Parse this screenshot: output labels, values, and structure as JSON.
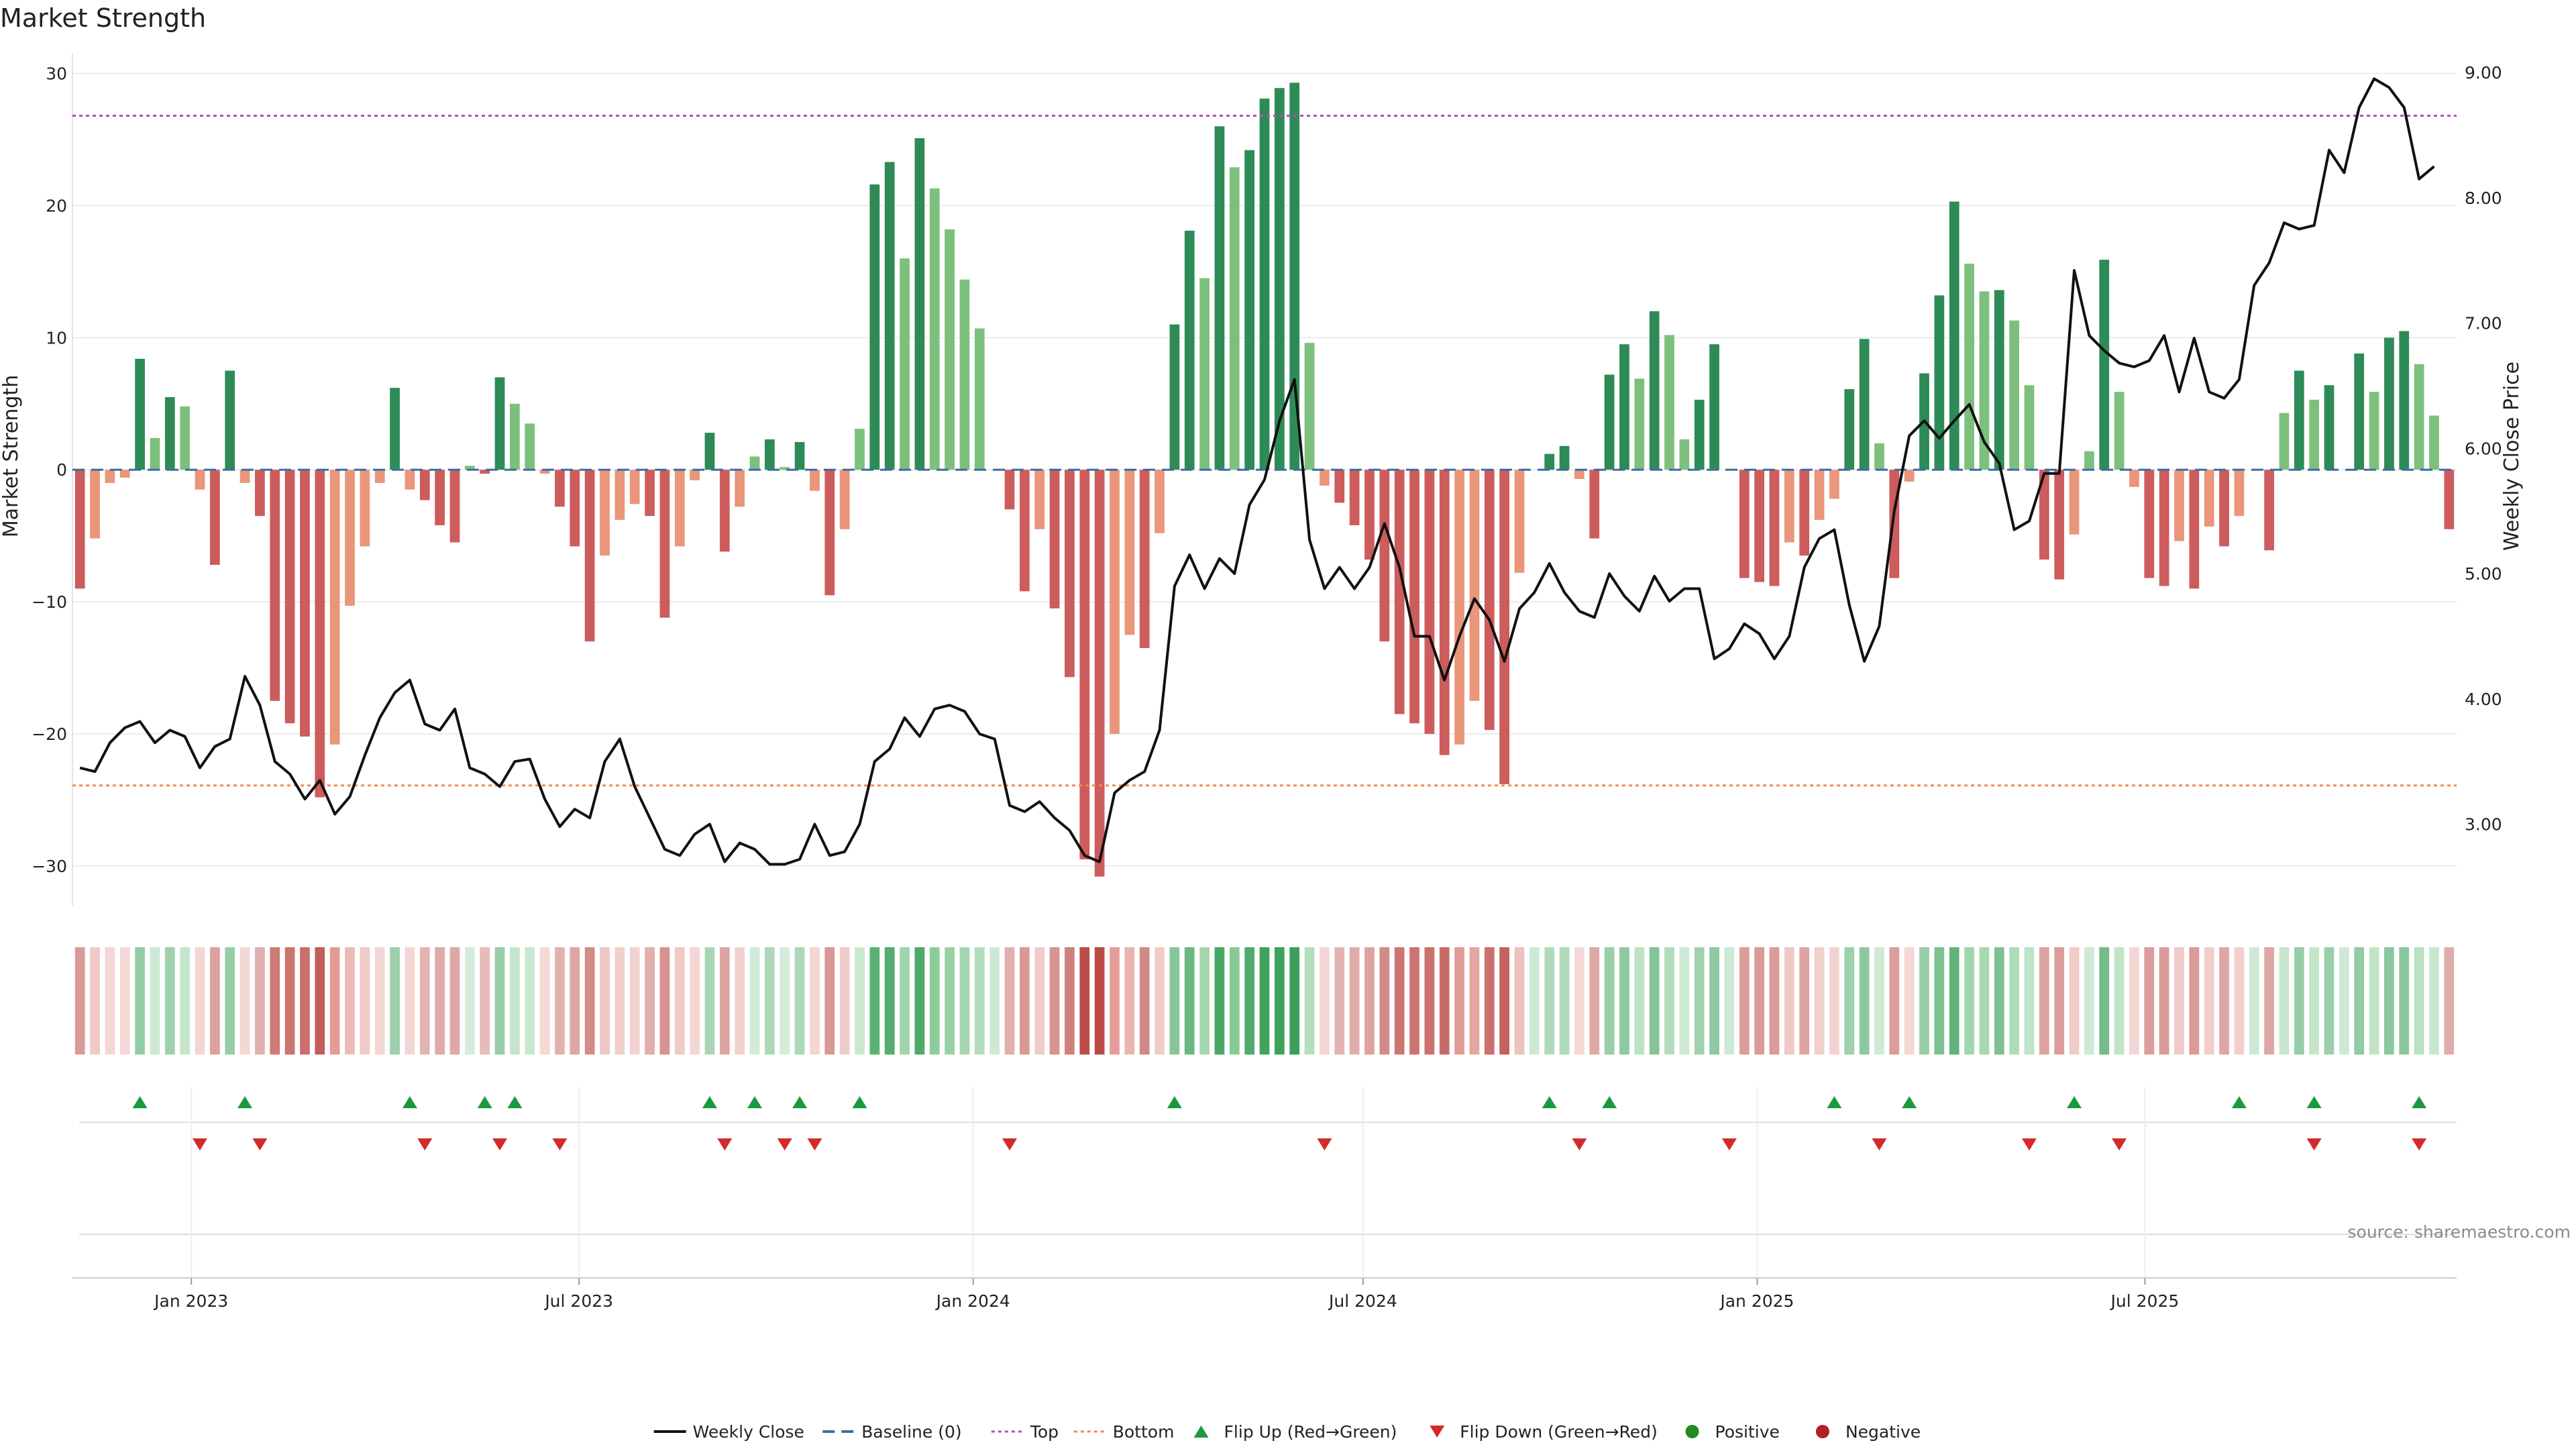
{
  "chart_data": {
    "type": "bar",
    "title": "Market Strength",
    "ylabel": "Market Strength",
    "y2label": "Weekly Close Price",
    "ylim": [
      -33,
      31.5
    ],
    "y2lim": [
      2.35,
      9.15
    ],
    "yticks": [
      30,
      20,
      10,
      0,
      -10,
      -20,
      -30
    ],
    "y2ticks": [
      "9.00",
      "8.00",
      "7.00",
      "6.00",
      "5.00",
      "4.00",
      "3.00"
    ],
    "y2tick_values": [
      9,
      8,
      7,
      6,
      5,
      4,
      3
    ],
    "top_threshold": 26.8,
    "bottom_threshold": -23.9,
    "start_date": "2022-11-10",
    "end_date": "2025-10-23",
    "x_ticks": [
      {
        "date": "2023-01-01",
        "label": "Jan 2023"
      },
      {
        "date": "2023-07-01",
        "label": "Jul 2023"
      },
      {
        "date": "2024-01-01",
        "label": "Jan 2024"
      },
      {
        "date": "2024-07-01",
        "label": "Jul 2024"
      },
      {
        "date": "2025-01-01",
        "label": "Jan 2025"
      },
      {
        "date": "2025-07-01",
        "label": "Jul 2025"
      }
    ],
    "strength": [
      -9,
      -5.2,
      -1,
      -0.6,
      8.4,
      2.4,
      5.5,
      4.8,
      -1.5,
      -7.2,
      7.5,
      -1,
      -3.5,
      -17.5,
      -19.2,
      -20.2,
      -24.8,
      -20.8,
      -10.3,
      -5.8,
      -1,
      6.2,
      -1.5,
      -2.3,
      -4.2,
      -5.5,
      0.3,
      -0.3,
      7,
      5,
      3.5,
      -0.3,
      -2.8,
      -5.8,
      -13,
      -6.5,
      -3.8,
      -2.6,
      -3.5,
      -11.2,
      -5.8,
      -0.8,
      2.8,
      -6.2,
      -2.8,
      1,
      2.3,
      0.2,
      2.1,
      -1.6,
      -9.5,
      -4.5,
      3.1,
      21.6,
      23.3,
      16,
      25.1,
      21.3,
      18.2,
      14.4,
      10.7,
      0,
      -3,
      -9.2,
      -4.5,
      -10.5,
      -15.7,
      -29.5,
      -30.8,
      -20,
      -12.5,
      -13.5,
      -4.8,
      11,
      18.1,
      14.5,
      26,
      22.9,
      24.2,
      28.1,
      28.9,
      29.3,
      9.6,
      -1.2,
      -2.5,
      -4.2,
      -6.8,
      -13,
      -18.5,
      -19.2,
      -20,
      -21.6,
      -20.8,
      -17.5,
      -19.7,
      -23.8,
      -7.8,
      0,
      1.2,
      1.8,
      -0.7,
      -5.2,
      7.2,
      9.5,
      6.9,
      12,
      10.2,
      2.3,
      5.3,
      9.5,
      0,
      -8.2,
      -8.5,
      -8.8,
      -5.5,
      -6.5,
      -3.8,
      -2.2,
      6.1,
      9.9,
      2,
      -8.2,
      -0.9,
      7.3,
      13.2,
      20.3,
      15.6,
      13.5,
      13.6,
      11.3,
      6.4,
      -6.8,
      -8.3,
      -4.9,
      1.4,
      15.9,
      5.9,
      -1.3,
      -8.2,
      -8.8,
      -5.4,
      -9,
      -4.3,
      -5.8,
      -3.5,
      0,
      -6.1,
      4.3,
      7.5,
      5.3,
      6.4,
      0,
      8.8,
      5.9,
      10,
      10.5,
      8,
      4.1,
      -4.5
    ],
    "price": [
      3.45,
      3.42,
      3.65,
      3.77,
      3.82,
      3.65,
      3.75,
      3.7,
      3.45,
      3.62,
      3.68,
      4.18,
      3.95,
      3.5,
      3.4,
      3.2,
      3.35,
      3.08,
      3.22,
      3.55,
      3.85,
      4.05,
      4.15,
      3.8,
      3.75,
      3.92,
      3.45,
      3.4,
      3.3,
      3.5,
      3.52,
      3.2,
      2.98,
      3.12,
      3.05,
      3.5,
      3.68,
      3.3,
      3.05,
      2.8,
      2.75,
      2.92,
      3.0,
      2.7,
      2.85,
      2.8,
      2.68,
      2.68,
      2.72,
      3.0,
      2.75,
      2.78,
      3.0,
      3.5,
      3.6,
      3.85,
      3.7,
      3.92,
      3.95,
      3.9,
      3.72,
      3.68,
      3.15,
      3.1,
      3.18,
      3.05,
      2.95,
      2.75,
      2.7,
      3.25,
      3.35,
      3.42,
      3.75,
      4.9,
      5.15,
      4.88,
      5.12,
      5,
      5.55,
      5.75,
      6.22,
      6.55,
      5.27,
      4.88,
      5.05,
      4.88,
      5.05,
      5.4,
      5.05,
      4.5,
      4.5,
      4.15,
      4.5,
      4.8,
      4.63,
      4.3,
      4.72,
      4.85,
      5.08,
      4.85,
      4.7,
      4.65,
      5,
      4.82,
      4.7,
      4.98,
      4.78,
      4.88,
      4.88,
      4.32,
      4.4,
      4.6,
      4.52,
      4.32,
      4.5,
      5.05,
      5.28,
      5.35,
      4.75,
      4.3,
      4.58,
      5.5,
      6.1,
      6.22,
      6.08,
      6.22,
      6.35,
      6.05,
      5.88,
      5.35,
      5.42,
      5.8,
      5.8,
      7.42,
      6.9,
      6.78,
      6.68,
      6.65,
      6.7,
      6.9,
      6.45,
      6.88,
      6.45,
      6.4,
      6.55,
      7.3,
      7.48,
      7.8,
      7.75,
      7.78,
      8.38,
      8.2,
      8.72,
      8.95,
      8.88,
      8.72,
      8.15,
      8.25
    ],
    "flip_up_weeks": [
      4,
      11,
      22,
      27,
      29,
      42,
      45,
      48,
      52,
      73,
      98,
      102,
      117,
      122,
      133,
      144,
      149,
      156
    ],
    "flip_down_weeks": [
      8,
      12,
      23,
      28,
      32,
      43,
      47,
      49,
      62,
      83,
      100,
      110,
      120,
      130,
      136,
      149,
      156
    ],
    "series": [
      {
        "name": "Weekly Close",
        "color": "#111111"
      },
      {
        "name": "Baseline (0)",
        "color": "#3a6ea5"
      },
      {
        "name": "Top",
        "color": "#b54ac4"
      },
      {
        "name": "Bottom",
        "color": "#f08c4c"
      },
      {
        "name": "Flip Up (Red→Green)",
        "color": "#1a9a3e"
      },
      {
        "name": "Flip Down (Green→Red)",
        "color": "#d42a2a"
      },
      {
        "name": "Positive",
        "color": "#228b22"
      },
      {
        "name": "Negative",
        "color": "#b22222"
      }
    ],
    "colors": {
      "pos_strong": "#2e8b57",
      "pos_light": "#7dc07d",
      "neg_strong": "#cd5c5c",
      "neg_light": "#e9967a",
      "price_line": "#111111",
      "top_line": "#b54ac4",
      "bottom_line": "#f08c4c",
      "baseline": "#3a6ea5",
      "flip_up": "#1a9a3e",
      "flip_down": "#d42a2a"
    },
    "source": "source: sharemaestro.com"
  }
}
